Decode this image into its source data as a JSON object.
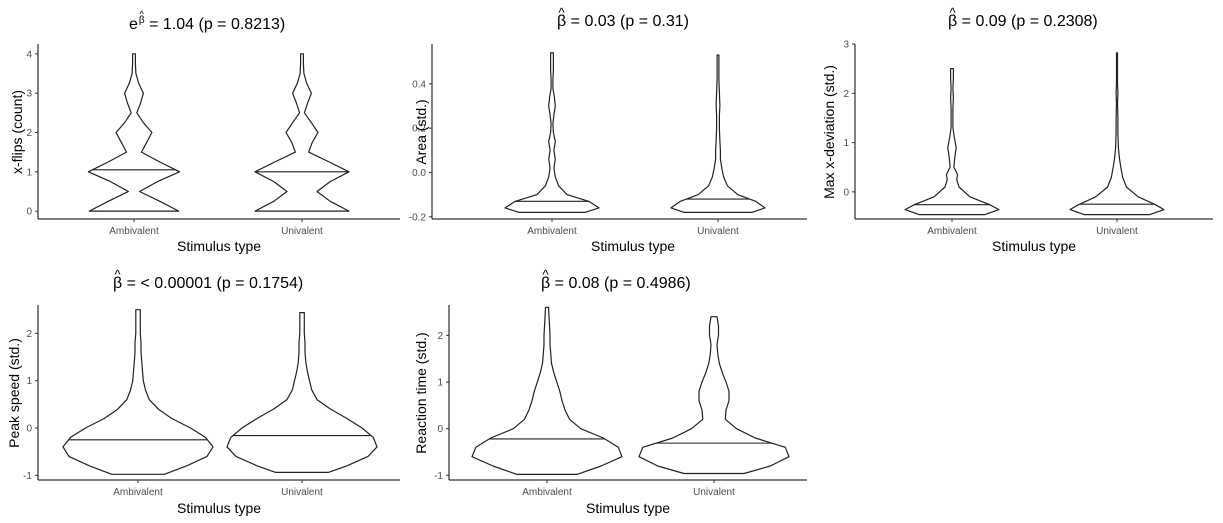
{
  "chart_data": [
    {
      "type": "violin",
      "title": {
        "prefix": "e",
        "sup": "β",
        "text": " =  1.04 (p = 0.8213)"
      },
      "ylabel": "x-flips (count)",
      "xlabel": "Stimulus type",
      "categories": [
        "Ambivalent",
        "Univalent"
      ],
      "ylim": [
        -0.2,
        4.25
      ],
      "yticks": [
        0,
        1,
        2,
        3,
        4
      ],
      "medians": [
        1.05,
        1.0
      ],
      "ranges": [
        [
          0,
          4
        ],
        [
          0,
          4
        ]
      ],
      "density": [
        [
          [
            0,
            0.95
          ],
          [
            0.25,
            0.55
          ],
          [
            0.5,
            0.12
          ],
          [
            0.75,
            0.5
          ],
          [
            1,
            0.97
          ],
          [
            1.25,
            0.55
          ],
          [
            1.5,
            0.16
          ],
          [
            1.75,
            0.27
          ],
          [
            2,
            0.38
          ],
          [
            2.25,
            0.2
          ],
          [
            2.5,
            0.06
          ],
          [
            2.75,
            0.14
          ],
          [
            3,
            0.2
          ],
          [
            3.25,
            0.1
          ],
          [
            3.5,
            0.04
          ],
          [
            3.75,
            0.03
          ],
          [
            4,
            0.03
          ]
        ],
        [
          [
            0,
            1.0
          ],
          [
            0.25,
            0.6
          ],
          [
            0.5,
            0.32
          ],
          [
            0.75,
            0.6
          ],
          [
            1,
            1.0
          ],
          [
            1.25,
            0.58
          ],
          [
            1.5,
            0.14
          ],
          [
            1.75,
            0.22
          ],
          [
            2,
            0.34
          ],
          [
            2.25,
            0.2
          ],
          [
            2.5,
            0.05
          ],
          [
            2.75,
            0.12
          ],
          [
            3,
            0.2
          ],
          [
            3.25,
            0.1
          ],
          [
            3.5,
            0.04
          ],
          [
            3.75,
            0.03
          ],
          [
            4,
            0.03
          ]
        ]
      ]
    },
    {
      "type": "violin",
      "title": {
        "text": "  =  0.03 (p = 0.31)"
      },
      "ylabel": "Area (std.)",
      "xlabel": "Stimulus type",
      "categories": [
        "Ambivalent",
        "Univalent"
      ],
      "ylim": [
        -0.21,
        0.58
      ],
      "yticks": [
        -0.2,
        0.0,
        0.2,
        0.4
      ],
      "yticklabels": [
        "-0.2",
        "0.0",
        "0.2",
        "0.4"
      ],
      "medians": [
        -0.13,
        -0.12
      ],
      "ranges": [
        [
          -0.18,
          0.54
        ],
        [
          -0.18,
          0.53
        ]
      ],
      "density": [
        [
          [
            -0.18,
            0.7
          ],
          [
            -0.16,
            1.0
          ],
          [
            -0.13,
            0.78
          ],
          [
            -0.1,
            0.32
          ],
          [
            -0.06,
            0.14
          ],
          [
            -0.02,
            0.07
          ],
          [
            0.02,
            0.04
          ],
          [
            0.06,
            0.07
          ],
          [
            0.1,
            0.04
          ],
          [
            0.14,
            0.07
          ],
          [
            0.18,
            0.03
          ],
          [
            0.22,
            0.02
          ],
          [
            0.26,
            0.04
          ],
          [
            0.3,
            0.07
          ],
          [
            0.34,
            0.05
          ],
          [
            0.38,
            0.02
          ],
          [
            0.42,
            0.02
          ],
          [
            0.46,
            0.03
          ],
          [
            0.5,
            0.03
          ],
          [
            0.54,
            0.03
          ]
        ],
        [
          [
            -0.18,
            0.72
          ],
          [
            -0.16,
            1.0
          ],
          [
            -0.13,
            0.8
          ],
          [
            -0.1,
            0.42
          ],
          [
            -0.06,
            0.2
          ],
          [
            -0.02,
            0.12
          ],
          [
            0.02,
            0.08
          ],
          [
            0.06,
            0.05
          ],
          [
            0.1,
            0.05
          ],
          [
            0.14,
            0.04
          ],
          [
            0.2,
            0.03
          ],
          [
            0.26,
            0.03
          ],
          [
            0.3,
            0.04
          ],
          [
            0.36,
            0.03
          ],
          [
            0.42,
            0.02
          ],
          [
            0.48,
            0.02
          ],
          [
            0.53,
            0.02
          ]
        ]
      ]
    },
    {
      "type": "violin",
      "title": {
        "text": "  =  0.09 (p = 0.2308)"
      },
      "ylabel": "Max x-deviation (std.)",
      "xlabel": "Stimulus type",
      "categories": [
        "Ambivalent",
        "Univalent"
      ],
      "ylim": [
        -0.55,
        3.0
      ],
      "yticks": [
        0,
        1,
        2,
        3
      ],
      "medians": [
        -0.26,
        -0.25
      ],
      "ranges": [
        [
          -0.46,
          2.5
        ],
        [
          -0.46,
          2.82
        ]
      ],
      "density": [
        [
          [
            -0.46,
            0.7
          ],
          [
            -0.36,
            1.0
          ],
          [
            -0.26,
            0.8
          ],
          [
            -0.1,
            0.38
          ],
          [
            0.1,
            0.15
          ],
          [
            0.25,
            0.1
          ],
          [
            0.35,
            0.12
          ],
          [
            0.5,
            0.04
          ],
          [
            0.7,
            0.06
          ],
          [
            0.9,
            0.09
          ],
          [
            1.1,
            0.05
          ],
          [
            1.3,
            0.02
          ],
          [
            1.5,
            0.02
          ],
          [
            1.7,
            0.02
          ],
          [
            1.9,
            0.03
          ],
          [
            2.1,
            0.02
          ],
          [
            2.3,
            0.03
          ],
          [
            2.5,
            0.03
          ]
        ],
        [
          [
            -0.46,
            0.7
          ],
          [
            -0.36,
            1.0
          ],
          [
            -0.26,
            0.82
          ],
          [
            -0.1,
            0.45
          ],
          [
            0.1,
            0.2
          ],
          [
            0.3,
            0.12
          ],
          [
            0.5,
            0.08
          ],
          [
            0.7,
            0.05
          ],
          [
            0.9,
            0.03
          ],
          [
            1.2,
            0.02
          ],
          [
            1.5,
            0.02
          ],
          [
            1.8,
            0.01
          ],
          [
            2.0,
            0.02
          ],
          [
            2.2,
            0.01
          ],
          [
            2.5,
            0.01
          ],
          [
            2.82,
            0.01
          ]
        ]
      ]
    },
    {
      "type": "violin",
      "title": {
        "text": "  =  < 0.00001 (p = 0.1754)"
      },
      "ylabel": "Peak speed (std.)",
      "xlabel": "Stimulus type",
      "categories": [
        "Ambivalent",
        "Univalent"
      ],
      "ylim": [
        -1.1,
        2.6
      ],
      "yticks": [
        -1,
        0,
        1,
        2
      ],
      "medians": [
        -0.25,
        -0.16
      ],
      "ranges": [
        [
          -0.98,
          2.5
        ],
        [
          -0.94,
          2.44
        ]
      ],
      "density": [
        [
          [
            -0.98,
            0.35
          ],
          [
            -0.8,
            0.65
          ],
          [
            -0.6,
            0.92
          ],
          [
            -0.4,
            1.0
          ],
          [
            -0.2,
            0.9
          ],
          [
            0.0,
            0.7
          ],
          [
            0.2,
            0.45
          ],
          [
            0.4,
            0.27
          ],
          [
            0.6,
            0.15
          ],
          [
            0.8,
            0.1
          ],
          [
            1.0,
            0.07
          ],
          [
            1.2,
            0.06
          ],
          [
            1.4,
            0.05
          ],
          [
            1.6,
            0.04
          ],
          [
            1.8,
            0.04
          ],
          [
            2.0,
            0.03
          ],
          [
            2.2,
            0.03
          ],
          [
            2.5,
            0.03
          ]
        ],
        [
          [
            -0.94,
            0.35
          ],
          [
            -0.8,
            0.6
          ],
          [
            -0.6,
            0.88
          ],
          [
            -0.4,
            1.0
          ],
          [
            -0.2,
            0.95
          ],
          [
            0.0,
            0.8
          ],
          [
            0.2,
            0.6
          ],
          [
            0.4,
            0.38
          ],
          [
            0.6,
            0.2
          ],
          [
            0.8,
            0.13
          ],
          [
            1.0,
            0.1
          ],
          [
            1.2,
            0.07
          ],
          [
            1.4,
            0.05
          ],
          [
            1.6,
            0.04
          ],
          [
            1.8,
            0.04
          ],
          [
            2.0,
            0.03
          ],
          [
            2.2,
            0.03
          ],
          [
            2.44,
            0.03
          ]
        ]
      ]
    },
    {
      "type": "violin",
      "title": {
        "text": "  =  0.08 (p = 0.4986)"
      },
      "ylabel": "Reaction time (std.)",
      "xlabel": "Stimulus type",
      "categories": [
        "Ambivalent",
        "Univalent"
      ],
      "ylim": [
        -1.1,
        2.65
      ],
      "yticks": [
        -1,
        0,
        1,
        2
      ],
      "medians": [
        -0.22,
        -0.31
      ],
      "ranges": [
        [
          -0.98,
          2.6
        ],
        [
          -0.96,
          2.4
        ]
      ],
      "density": [
        [
          [
            -0.98,
            0.4
          ],
          [
            -0.8,
            0.72
          ],
          [
            -0.6,
            1.0
          ],
          [
            -0.4,
            0.95
          ],
          [
            -0.2,
            0.75
          ],
          [
            0.0,
            0.45
          ],
          [
            0.2,
            0.3
          ],
          [
            0.4,
            0.24
          ],
          [
            0.6,
            0.2
          ],
          [
            0.8,
            0.17
          ],
          [
            1.0,
            0.13
          ],
          [
            1.2,
            0.09
          ],
          [
            1.4,
            0.06
          ],
          [
            1.6,
            0.05
          ],
          [
            1.8,
            0.04
          ],
          [
            2.0,
            0.04
          ],
          [
            2.3,
            0.03
          ],
          [
            2.6,
            0.02
          ]
        ],
        [
          [
            -0.96,
            0.4
          ],
          [
            -0.8,
            0.75
          ],
          [
            -0.6,
            1.0
          ],
          [
            -0.4,
            0.95
          ],
          [
            -0.2,
            0.55
          ],
          [
            0.0,
            0.3
          ],
          [
            0.2,
            0.15
          ],
          [
            0.4,
            0.16
          ],
          [
            0.6,
            0.2
          ],
          [
            0.8,
            0.2
          ],
          [
            1.0,
            0.16
          ],
          [
            1.2,
            0.11
          ],
          [
            1.4,
            0.07
          ],
          [
            1.6,
            0.05
          ],
          [
            1.8,
            0.04
          ],
          [
            2.0,
            0.06
          ],
          [
            2.2,
            0.06
          ],
          [
            2.4,
            0.04
          ]
        ]
      ]
    }
  ]
}
